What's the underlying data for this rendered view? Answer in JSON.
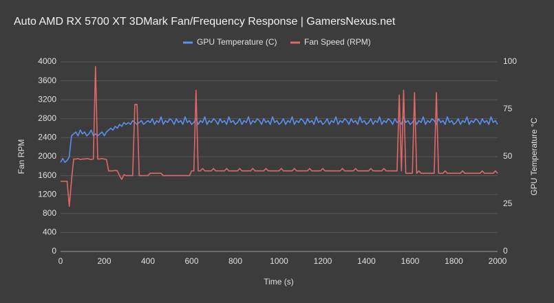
{
  "chart_data": {
    "type": "line",
    "title": "Auto AMD RX 5700 XT 3DMark Fan/Frequency Response | GamersNexus.net",
    "x_label": "Time (s)",
    "y_label": "Fan RPM",
    "y2_label": "GPU Temperature °C",
    "xlim": [
      0,
      2000
    ],
    "xticks": [
      0,
      200,
      400,
      600,
      800,
      1000,
      1200,
      1400,
      1600,
      1800,
      2000
    ],
    "ylim": [
      0,
      4000
    ],
    "yticks": [
      0,
      400,
      800,
      1200,
      1600,
      2000,
      2400,
      2800,
      3200,
      3600,
      4000
    ],
    "y2lim": [
      0,
      100
    ],
    "y2ticks": [
      0,
      25,
      50,
      75,
      100
    ],
    "grid": true,
    "legend": "top",
    "x": [
      0,
      10,
      20,
      30,
      40,
      50,
      60,
      70,
      80,
      90,
      100,
      110,
      120,
      130,
      140,
      150,
      160,
      170,
      180,
      190,
      200,
      210,
      220,
      230,
      240,
      250,
      260,
      270,
      280,
      290,
      300,
      310,
      320,
      330,
      340,
      350,
      360,
      370,
      380,
      390,
      400,
      410,
      420,
      430,
      440,
      450,
      460,
      470,
      480,
      490,
      500,
      510,
      520,
      530,
      540,
      550,
      560,
      570,
      580,
      590,
      600,
      610,
      620,
      630,
      640,
      650,
      660,
      670,
      680,
      690,
      700,
      710,
      720,
      730,
      740,
      750,
      760,
      770,
      780,
      790,
      800,
      810,
      820,
      830,
      840,
      850,
      860,
      870,
      880,
      890,
      900,
      910,
      920,
      930,
      940,
      950,
      960,
      970,
      980,
      990,
      1000,
      1010,
      1020,
      1030,
      1040,
      1050,
      1060,
      1070,
      1080,
      1090,
      1100,
      1110,
      1120,
      1130,
      1140,
      1150,
      1160,
      1170,
      1180,
      1190,
      1200,
      1210,
      1220,
      1230,
      1240,
      1250,
      1260,
      1270,
      1280,
      1290,
      1300,
      1310,
      1320,
      1330,
      1340,
      1350,
      1360,
      1370,
      1380,
      1390,
      1400,
      1410,
      1420,
      1430,
      1440,
      1450,
      1460,
      1470,
      1480,
      1490,
      1500,
      1510,
      1520,
      1530,
      1540,
      1550,
      1560,
      1570,
      1580,
      1590,
      1600,
      1610,
      1620,
      1630,
      1640,
      1650,
      1660,
      1670,
      1680,
      1690,
      1700,
      1710,
      1720,
      1730,
      1740,
      1750,
      1760,
      1770,
      1780,
      1790,
      1800,
      1810,
      1820,
      1830,
      1840,
      1850,
      1860,
      1870,
      1880,
      1890,
      1900,
      1910,
      1920,
      1930,
      1940,
      1950,
      1960,
      1970,
      1980,
      1990,
      2000
    ],
    "series": [
      {
        "name": "GPU Temperature (C)",
        "color": "#5b8ff0",
        "axis": "y2",
        "values": [
          47,
          49,
          47,
          48,
          50,
          61,
          62,
          63,
          61,
          64,
          62,
          63,
          61,
          62,
          64,
          61,
          62,
          61,
          62,
          63,
          61,
          63,
          64,
          65,
          64,
          66,
          65,
          67,
          66,
          68,
          67,
          68,
          67,
          69,
          68,
          67,
          68,
          69,
          67,
          68,
          69,
          68,
          70,
          67,
          69,
          68,
          71,
          67,
          69,
          68,
          70,
          69,
          67,
          70,
          68,
          69,
          67,
          71,
          68,
          69,
          67,
          68,
          70,
          67,
          69,
          68,
          71,
          67,
          69,
          68,
          70,
          69,
          67,
          70,
          68,
          69,
          67,
          71,
          68,
          69,
          67,
          68,
          70,
          67,
          69,
          68,
          71,
          67,
          69,
          68,
          70,
          69,
          67,
          70,
          68,
          69,
          67,
          71,
          68,
          69,
          67,
          68,
          70,
          67,
          69,
          68,
          71,
          67,
          69,
          68,
          70,
          69,
          67,
          70,
          68,
          69,
          67,
          71,
          68,
          69,
          67,
          68,
          70,
          67,
          69,
          68,
          71,
          67,
          69,
          68,
          70,
          69,
          67,
          70,
          68,
          69,
          67,
          71,
          68,
          69,
          67,
          68,
          70,
          67,
          69,
          68,
          71,
          67,
          69,
          68,
          70,
          69,
          67,
          70,
          68,
          69,
          67,
          71,
          68,
          69,
          67,
          68,
          70,
          67,
          69,
          68,
          71,
          67,
          69,
          68,
          70,
          69,
          67,
          70,
          68,
          69,
          67,
          71,
          68,
          69,
          67,
          68,
          70,
          67,
          69,
          68,
          71,
          67,
          69,
          68,
          70,
          69,
          67,
          70,
          68,
          69,
          67,
          71,
          68,
          69,
          67
        ]
      },
      {
        "name": "Fan Speed (RPM)",
        "color": "#e06868",
        "values": [
          1480,
          1480,
          1480,
          1480,
          950,
          1500,
          1950,
          1950,
          1960,
          1940,
          1950,
          1950,
          1960,
          1950,
          1940,
          1950,
          3900,
          1950,
          1950,
          1960,
          1950,
          1940,
          1700,
          1700,
          1700,
          1710,
          1700,
          1600,
          1520,
          1620,
          1600,
          1600,
          1600,
          1600,
          3100,
          3100,
          1600,
          1600,
          1600,
          1600,
          1600,
          1650,
          1650,
          1650,
          1650,
          1650,
          1650,
          1600,
          1600,
          1600,
          1600,
          1600,
          1600,
          1600,
          1600,
          1600,
          1600,
          1600,
          1600,
          1600,
          1700,
          1700,
          3400,
          1700,
          1700,
          1750,
          1700,
          1700,
          1700,
          1700,
          1750,
          1700,
          1700,
          1700,
          1700,
          1700,
          1750,
          1700,
          1700,
          1700,
          1700,
          1700,
          1750,
          1700,
          1700,
          1700,
          1700,
          1700,
          1750,
          1700,
          1700,
          1700,
          1700,
          1700,
          1750,
          1700,
          1700,
          1700,
          1700,
          1700,
          1700,
          1750,
          1700,
          1700,
          1700,
          1700,
          1700,
          1750,
          1700,
          1700,
          1700,
          1700,
          1700,
          1700,
          1750,
          1700,
          1700,
          1700,
          1700,
          1700,
          1750,
          1700,
          1700,
          1700,
          1700,
          1700,
          1700,
          1700,
          1700,
          1750,
          1700,
          1700,
          1700,
          1700,
          1700,
          1750,
          1700,
          1700,
          1700,
          1700,
          1700,
          1700,
          1750,
          1700,
          1700,
          1700,
          1700,
          1700,
          1750,
          1700,
          1700,
          1700,
          1700,
          1700,
          1700,
          3300,
          1700,
          3400,
          1650,
          1650,
          1650,
          1650,
          3350,
          1650,
          1700,
          1650,
          1650,
          1650,
          1650,
          1650,
          1650,
          1650,
          3350,
          1650,
          1650,
          1650,
          1700,
          1650,
          1650,
          1650,
          1650,
          1650,
          1650,
          1650,
          1700,
          1650,
          1650,
          1650,
          1650,
          1650,
          1650,
          1650,
          1650,
          1700,
          1650,
          1650,
          1650,
          1650,
          1650,
          1700,
          1650
        ]
      }
    ]
  }
}
